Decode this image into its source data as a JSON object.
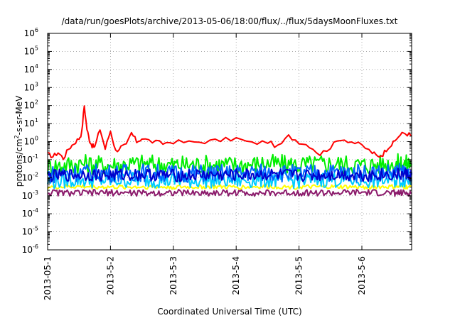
{
  "chart_data": {
    "type": "line",
    "title": "/data/run/goesPlots/archive/2013-05-06/18:00/flux/../flux/5daysMoonFluxes.txt",
    "xlabel": "Coordinated Universal Time (UTC)",
    "ylabel": "protons/cm²-s-sr-MeV",
    "ylabel_parts": {
      "base": "protons/cm",
      "sup": "2",
      "rest": "-s-sr-MeV"
    },
    "y_scale": "log",
    "ylim": [
      1e-06,
      1000000.0
    ],
    "xlim": [
      "2013-05-01",
      "2013-05-06 19:00"
    ],
    "x_ticks": [
      "2013-05-1",
      "2013-5-2",
      "2013-5-3",
      "2013-5-4",
      "2013-5-5",
      "2013-5-6"
    ],
    "y_ticks": [
      {
        "base": "10",
        "exp": "-6"
      },
      {
        "base": "10",
        "exp": "-5"
      },
      {
        "base": "10",
        "exp": "-4"
      },
      {
        "base": "10",
        "exp": "-3"
      },
      {
        "base": "10",
        "exp": "-2"
      },
      {
        "base": "10",
        "exp": "-1"
      },
      {
        "base": "10",
        "exp": "0"
      },
      {
        "base": "10",
        "exp": "1"
      },
      {
        "base": "10",
        "exp": "2"
      },
      {
        "base": "10",
        "exp": "3"
      },
      {
        "base": "10",
        "exp": "4"
      },
      {
        "base": "10",
        "exp": "5"
      },
      {
        "base": "10",
        "exp": "6"
      }
    ],
    "grid": true,
    "legend": "none",
    "series": [
      {
        "color": "#ff0000",
        "x": [
          "2013-05-01 00:00",
          "2013-05-01 02:00",
          "2013-05-01 04:00",
          "2013-05-01 06:00",
          "2013-05-01 08:00",
          "2013-05-01 10:00",
          "2013-05-01 12:00",
          "2013-05-01 13:00",
          "2013-05-01 14:00",
          "2013-05-01 15:00",
          "2013-05-01 16:00",
          "2013-05-01 17:00",
          "2013-05-01 18:00",
          "2013-05-01 20:00",
          "2013-05-01 22:00",
          "2013-05-02 00:00",
          "2013-05-02 02:00",
          "2013-05-02 04:00",
          "2013-05-02 06:00",
          "2013-05-02 08:00",
          "2013-05-02 10:00",
          "2013-05-02 12:00",
          "2013-05-02 16:00",
          "2013-05-02 20:00",
          "2013-05-03 00:00",
          "2013-05-03 06:00",
          "2013-05-03 12:00",
          "2013-05-03 18:00",
          "2013-05-04 00:00",
          "2013-05-04 06:00",
          "2013-05-04 12:00",
          "2013-05-04 16:00",
          "2013-05-04 20:00",
          "2013-05-05 00:00",
          "2013-05-05 04:00",
          "2013-05-05 08:00",
          "2013-05-05 12:00",
          "2013-05-05 16:00",
          "2013-05-05 20:00",
          "2013-05-06 00:00",
          "2013-05-06 04:00",
          "2013-05-06 06:00",
          "2013-05-06 08:00",
          "2013-05-06 10:00",
          "2013-05-06 12:00",
          "2013-05-06 14:00",
          "2013-05-06 16:00",
          "2013-05-06 18:00",
          "2013-05-06 19:00"
        ],
        "y": [
          0.2,
          0.15,
          0.25,
          0.12,
          0.4,
          0.8,
          1.5,
          3,
          100,
          5,
          1.2,
          0.6,
          0.5,
          5,
          0.4,
          4,
          0.3,
          0.5,
          0.6,
          3,
          1,
          1.5,
          1,
          0.8,
          1,
          0.9,
          1,
          1.2,
          1.5,
          0.8,
          1,
          0.5,
          2,
          1,
          0.6,
          0.2,
          0.5,
          1.5,
          1,
          0.6,
          0.25,
          0.15,
          0.2,
          0.5,
          0.8,
          2,
          3,
          2.5,
          2.2
        ]
      },
      {
        "color": "#00ee00",
        "x": [
          "2013-05-01 00:00",
          "2013-05-01 12:00",
          "2013-05-02 00:00",
          "2013-05-02 12:00",
          "2013-05-03 00:00",
          "2013-05-03 12:00",
          "2013-05-04 00:00",
          "2013-05-04 12:00",
          "2013-05-05 00:00",
          "2013-05-05 12:00",
          "2013-05-06 00:00",
          "2013-05-06 12:00",
          "2013-05-06 19:00"
        ],
        "y": [
          0.04,
          0.06,
          0.05,
          0.06,
          0.05,
          0.055,
          0.05,
          0.06,
          0.05,
          0.06,
          0.05,
          0.06,
          0.06
        ]
      },
      {
        "color": "#00ccff",
        "x": [
          "2013-05-01 00:00",
          "2013-05-01 12:00",
          "2013-05-02 00:00",
          "2013-05-02 12:00",
          "2013-05-03 00:00",
          "2013-05-03 12:00",
          "2013-05-04 00:00",
          "2013-05-04 12:00",
          "2013-05-05 00:00",
          "2013-05-05 12:00",
          "2013-05-06 00:00",
          "2013-05-06 12:00",
          "2013-05-06 19:00"
        ],
        "y": [
          0.006,
          0.008,
          0.007,
          0.008,
          0.007,
          0.0075,
          0.007,
          0.008,
          0.007,
          0.008,
          0.007,
          0.008,
          0.008
        ]
      },
      {
        "color": "#0066ff",
        "x": [
          "2013-05-01 00:00",
          "2013-05-01 12:00",
          "2013-05-02 00:00",
          "2013-05-02 12:00",
          "2013-05-03 00:00",
          "2013-05-03 12:00",
          "2013-05-04 00:00",
          "2013-05-04 12:00",
          "2013-05-05 00:00",
          "2013-05-05 12:00",
          "2013-05-06 00:00",
          "2013-05-06 12:00",
          "2013-05-06 19:00"
        ],
        "y": [
          0.015,
          0.02,
          0.018,
          0.02,
          0.017,
          0.018,
          0.018,
          0.02,
          0.017,
          0.02,
          0.018,
          0.02,
          0.02
        ]
      },
      {
        "color": "#0000cc",
        "x": [
          "2013-05-01 00:00",
          "2013-05-01 12:00",
          "2013-05-02 00:00",
          "2013-05-02 12:00",
          "2013-05-03 00:00",
          "2013-05-03 12:00",
          "2013-05-04 00:00",
          "2013-05-04 12:00",
          "2013-05-05 00:00",
          "2013-05-05 12:00",
          "2013-05-06 00:00",
          "2013-05-06 12:00",
          "2013-05-06 19:00"
        ],
        "y": [
          0.012,
          0.015,
          0.014,
          0.015,
          0.013,
          0.014,
          0.014,
          0.015,
          0.013,
          0.015,
          0.014,
          0.015,
          0.015
        ]
      },
      {
        "color": "#ffff00",
        "x": [
          "2013-05-01 00:00",
          "2013-05-01 12:00",
          "2013-05-02 00:00",
          "2013-05-02 12:00",
          "2013-05-03 00:00",
          "2013-05-03 12:00",
          "2013-05-04 00:00",
          "2013-05-04 12:00",
          "2013-05-05 00:00",
          "2013-05-05 12:00",
          "2013-05-06 00:00",
          "2013-05-06 12:00",
          "2013-05-06 19:00"
        ],
        "y": [
          0.003,
          0.0032,
          0.003,
          0.0031,
          0.003,
          0.0031,
          0.003,
          0.0032,
          0.003,
          0.0031,
          0.003,
          0.0031,
          0.003
        ]
      },
      {
        "color": "#8b1a6b",
        "x": [
          "2013-05-01 00:00",
          "2013-05-01 12:00",
          "2013-05-02 00:00",
          "2013-05-02 12:00",
          "2013-05-03 00:00",
          "2013-05-03 12:00",
          "2013-05-04 00:00",
          "2013-05-04 12:00",
          "2013-05-05 00:00",
          "2013-05-05 12:00",
          "2013-05-06 00:00",
          "2013-05-06 12:00",
          "2013-05-06 19:00"
        ],
        "y": [
          0.0015,
          0.0014,
          0.0015,
          0.0014,
          0.0015,
          0.0014,
          0.0015,
          0.0014,
          0.0015,
          0.0014,
          0.0015,
          0.0014,
          0.0014
        ]
      }
    ]
  }
}
